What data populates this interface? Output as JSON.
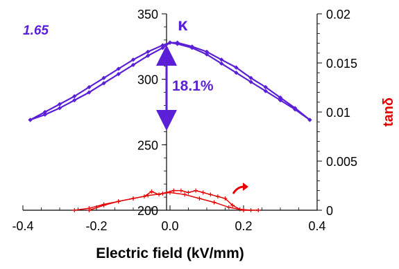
{
  "chart_data": {
    "type": "line",
    "xlabel": "Electric field (kV/mm)",
    "xlim": [
      -0.4,
      0.4
    ],
    "x_ticks": [
      "-0.4",
      "-0.2",
      "0.0",
      "0.2",
      "0.4"
    ],
    "y_left": {
      "label": "κ",
      "lim": [
        200,
        350
      ],
      "ticks": [
        "200",
        "250",
        "300",
        "350"
      ],
      "color": "#5a1fd6"
    },
    "y_right": {
      "label": "tanδ",
      "lim": [
        0,
        0.02
      ],
      "ticks": [
        "0",
        "0.005",
        "0.01",
        "0.015",
        "0.02"
      ],
      "color": "#e60000"
    },
    "annotations": {
      "corner_value": "1.65",
      "tunability": "18.1%"
    },
    "series": [
      {
        "axis": "left",
        "color": "#5a1fd6",
        "x": [
          -0.38,
          -0.34,
          -0.3,
          -0.26,
          -0.22,
          -0.18,
          -0.14,
          -0.1,
          -0.06,
          -0.02,
          0.0,
          0.02,
          0.06,
          0.1,
          0.14,
          0.18,
          0.22,
          0.26,
          0.3,
          0.34,
          0.38
        ],
        "y": [
          269,
          275,
          281,
          287,
          294,
          301,
          308,
          315,
          321,
          326,
          328,
          327,
          324,
          319,
          312,
          305,
          298,
          291,
          284,
          277,
          269
        ]
      },
      {
        "axis": "left",
        "color": "#5a1fd6",
        "x": [
          -0.38,
          -0.34,
          -0.3,
          -0.26,
          -0.22,
          -0.18,
          -0.14,
          -0.1,
          -0.06,
          -0.02,
          0.0,
          0.02,
          0.06,
          0.1,
          0.14,
          0.18,
          0.22,
          0.26,
          0.3,
          0.34,
          0.38
        ],
        "y": [
          269,
          273,
          278,
          284,
          290,
          297,
          304,
          311,
          318,
          324,
          328,
          328,
          325,
          321,
          315,
          309,
          301,
          294,
          286,
          278,
          269
        ]
      },
      {
        "axis": "right",
        "color": "#e60000",
        "x": [
          -0.22,
          -0.18,
          -0.14,
          -0.1,
          -0.07,
          -0.05,
          -0.03,
          -0.01,
          0.01,
          0.03,
          0.05,
          0.07,
          0.09,
          0.11,
          0.13,
          0.15,
          0.17,
          0.19,
          0.22
        ],
        "y": [
          0.0,
          0.0005,
          0.0009,
          0.0012,
          0.0014,
          0.0019,
          0.0016,
          0.0018,
          0.002,
          0.002,
          0.0018,
          0.002,
          0.0018,
          0.0016,
          0.0014,
          0.0012,
          0.0005,
          0.0001,
          0.0
        ]
      },
      {
        "axis": "right",
        "color": "#e60000",
        "x": [
          -0.26,
          -0.22,
          -0.18,
          -0.14,
          -0.1,
          -0.06,
          -0.02,
          0.0,
          0.04,
          0.08,
          0.12,
          0.16,
          0.2,
          0.24
        ],
        "y": [
          0.0,
          0.0002,
          0.0006,
          0.0009,
          0.0012,
          0.0015,
          0.0017,
          0.0018,
          0.0016,
          0.0012,
          0.0008,
          0.0003,
          0.0,
          0.0
        ]
      }
    ]
  }
}
